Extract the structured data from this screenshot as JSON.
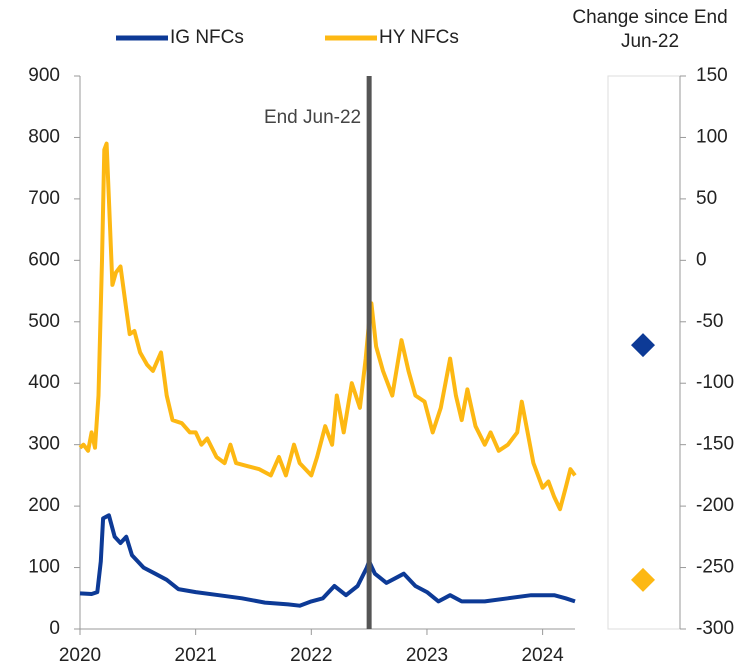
{
  "chart_data": [
    {
      "type": "line",
      "series": [
        {
          "name": "IG NFCs",
          "color": "#0d3a96",
          "x": [
            2020.0,
            2020.1,
            2020.15,
            2020.18,
            2020.2,
            2020.25,
            2020.3,
            2020.35,
            2020.4,
            2020.45,
            2020.55,
            2020.65,
            2020.75,
            2020.85,
            2021.0,
            2021.2,
            2021.4,
            2021.6,
            2021.8,
            2021.9,
            2022.0,
            2022.1,
            2022.2,
            2022.3,
            2022.4,
            2022.48,
            2022.5,
            2022.55,
            2022.65,
            2022.75,
            2022.8,
            2022.9,
            2023.0,
            2023.1,
            2023.2,
            2023.3,
            2023.5,
            2023.7,
            2023.9,
            2024.1,
            2024.2,
            2024.28
          ],
          "values": [
            58,
            57,
            60,
            110,
            180,
            185,
            150,
            140,
            150,
            120,
            100,
            90,
            80,
            65,
            60,
            55,
            50,
            43,
            40,
            38,
            45,
            50,
            70,
            55,
            70,
            100,
            110,
            90,
            75,
            85,
            90,
            70,
            60,
            45,
            55,
            45,
            45,
            50,
            55,
            55,
            50,
            45
          ]
        },
        {
          "name": "HY NFCs",
          "color": "#fdb813",
          "x": [
            2020.0,
            2020.03,
            2020.07,
            2020.1,
            2020.13,
            2020.16,
            2020.19,
            2020.21,
            2020.23,
            2020.25,
            2020.28,
            2020.31,
            2020.35,
            2020.4,
            2020.43,
            2020.47,
            2020.52,
            2020.58,
            2020.63,
            2020.7,
            2020.75,
            2020.8,
            2020.88,
            2020.95,
            2021.0,
            2021.05,
            2021.1,
            2021.18,
            2021.25,
            2021.3,
            2021.35,
            2021.45,
            2021.55,
            2021.65,
            2021.72,
            2021.78,
            2021.85,
            2021.9,
            2022.0,
            2022.05,
            2022.12,
            2022.18,
            2022.22,
            2022.28,
            2022.35,
            2022.42,
            2022.47,
            2022.5,
            2022.52,
            2022.56,
            2022.62,
            2022.7,
            2022.78,
            2022.84,
            2022.9,
            2022.98,
            2023.05,
            2023.12,
            2023.2,
            2023.25,
            2023.3,
            2023.35,
            2023.42,
            2023.5,
            2023.55,
            2023.62,
            2023.7,
            2023.78,
            2023.82,
            2023.87,
            2023.92,
            2024.0,
            2024.05,
            2024.1,
            2024.15,
            2024.2,
            2024.24,
            2024.28
          ],
          "values": [
            295,
            300,
            290,
            320,
            295,
            380,
            600,
            780,
            790,
            700,
            560,
            580,
            590,
            520,
            480,
            485,
            450,
            430,
            420,
            450,
            380,
            340,
            335,
            320,
            320,
            300,
            310,
            280,
            270,
            300,
            270,
            265,
            260,
            250,
            280,
            250,
            300,
            270,
            250,
            280,
            330,
            300,
            380,
            320,
            400,
            360,
            440,
            500,
            530,
            460,
            420,
            380,
            470,
            420,
            380,
            370,
            320,
            360,
            440,
            380,
            340,
            390,
            330,
            300,
            320,
            290,
            300,
            320,
            370,
            320,
            270,
            230,
            240,
            215,
            195,
            230,
            260,
            250
          ]
        }
      ],
      "xlim": [
        2020,
        2024.28
      ],
      "xticks": [
        2020,
        2021,
        2022,
        2023,
        2024
      ],
      "ylim": [
        0,
        900
      ],
      "yticks": [
        0,
        100,
        200,
        300,
        400,
        500,
        600,
        700,
        800,
        900
      ],
      "annotations": [
        {
          "text": "End Jun-22",
          "x": 2022.5
        }
      ]
    },
    {
      "type": "dot",
      "title": "Change since End Jun-22",
      "values": [
        -69,
        -260
      ],
      "colors": [
        "#0d3a96",
        "#fdb813"
      ],
      "ylim": [
        -300,
        150
      ],
      "yticks": [
        -300,
        -250,
        -200,
        -150,
        -100,
        -50,
        0,
        50,
        100,
        150
      ]
    }
  ]
}
